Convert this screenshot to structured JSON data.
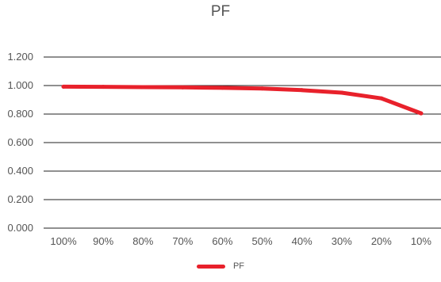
{
  "chart_data": {
    "type": "line",
    "title": "PF",
    "categories": [
      "100%",
      "90%",
      "80%",
      "70%",
      "60%",
      "50%",
      "40%",
      "30%",
      "20%",
      "10%"
    ],
    "series": [
      {
        "name": "PF",
        "color": "#e8212b",
        "values": [
          0.992,
          0.991,
          0.989,
          0.987,
          0.984,
          0.979,
          0.968,
          0.95,
          0.91,
          0.805
        ]
      }
    ],
    "ylim": [
      0,
      1.2
    ],
    "yticks": [
      "0.000",
      "0.200",
      "0.400",
      "0.600",
      "0.800",
      "1.000",
      "1.200"
    ],
    "ytick_values": [
      0,
      0.2,
      0.4,
      0.6,
      0.8,
      1.0,
      1.2
    ],
    "grid": true,
    "legend": "bottom"
  }
}
